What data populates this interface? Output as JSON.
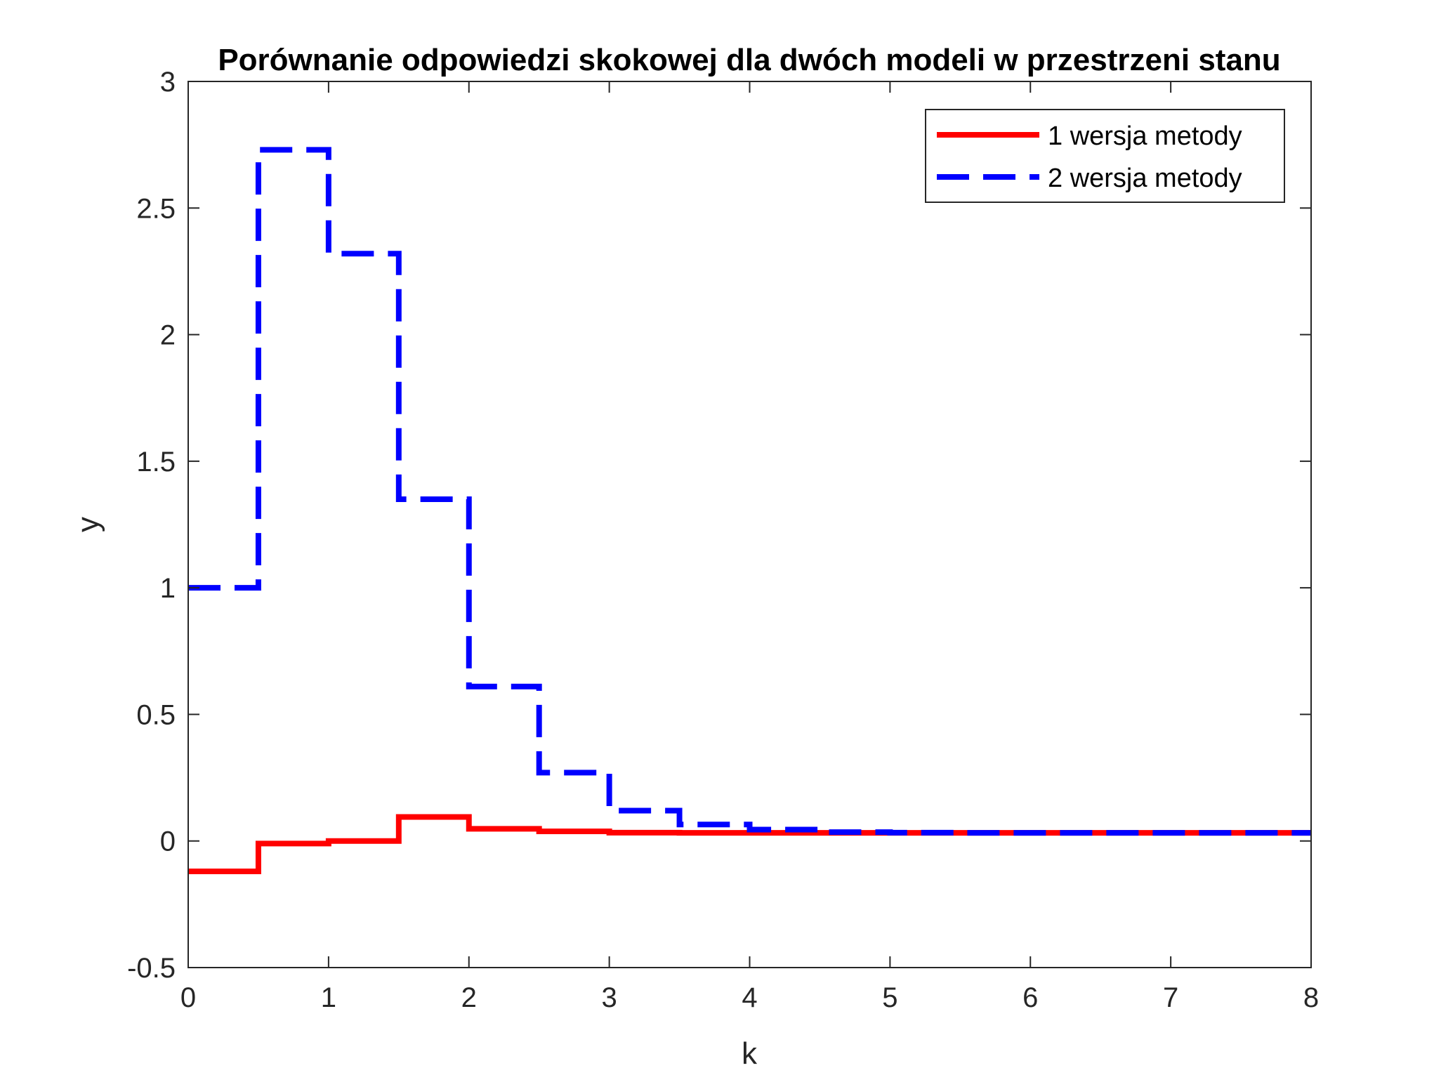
{
  "chart_data": {
    "type": "line",
    "title": "Porównanie odpowiedzi skokowej dla dwóch modeli w przestrzeni stanu",
    "xlabel": "k",
    "ylabel": "y",
    "xlim": [
      0,
      8
    ],
    "ylim": [
      -0.5,
      3
    ],
    "xticks": [
      0,
      1,
      2,
      3,
      4,
      5,
      6,
      7,
      8
    ],
    "yticks": [
      -0.5,
      0,
      0.5,
      1,
      1.5,
      2,
      2.5,
      3
    ],
    "xtick_labels": [
      "0",
      "1",
      "2",
      "3",
      "4",
      "5",
      "6",
      "7",
      "8"
    ],
    "ytick_labels": [
      "-0.5",
      "0",
      "0.5",
      "1",
      "1.5",
      "2",
      "2.5",
      "3"
    ],
    "grid": false,
    "legend_position": "top-right",
    "step_width": 0.5,
    "series": [
      {
        "name": "1 wersja metody",
        "color": "#ff0000",
        "style": "solid",
        "x": [
          0,
          0.5,
          1,
          1.5,
          2,
          2.5,
          3,
          3.5,
          4,
          4.5,
          5,
          5.5,
          6,
          6.5,
          7,
          7.5
        ],
        "values": [
          -0.12,
          -0.01,
          0.0,
          0.095,
          0.048,
          0.038,
          0.033,
          0.032,
          0.032,
          0.032,
          0.032,
          0.032,
          0.032,
          0.032,
          0.032,
          0.032
        ]
      },
      {
        "name": "2 wersja metody",
        "color": "#0000ff",
        "style": "dashed",
        "x": [
          0,
          0.5,
          1,
          1.5,
          2,
          2.5,
          3,
          3.5,
          4,
          4.5,
          5,
          5.5,
          6,
          6.5,
          7,
          7.5
        ],
        "values": [
          1.0,
          2.73,
          2.32,
          1.35,
          0.61,
          0.27,
          0.12,
          0.065,
          0.045,
          0.035,
          0.033,
          0.032,
          0.032,
          0.032,
          0.032,
          0.032
        ]
      }
    ]
  }
}
